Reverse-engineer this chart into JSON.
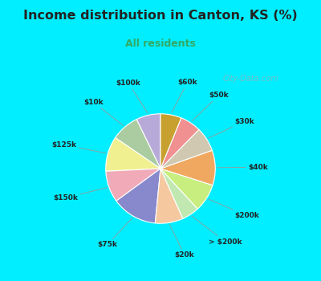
{
  "title": "Income distribution in Canton, KS (%)",
  "subtitle": "All residents",
  "title_color": "#222222",
  "subtitle_color": "#33aa66",
  "bg_top_color": "#00eeff",
  "bg_chart_color": "#e0f5ee",
  "watermark": "City-Data.com",
  "labels": [
    "$100k",
    "$10k",
    "$125k",
    "$150k",
    "$75k",
    "$20k",
    "> $200k",
    "$200k",
    "$40k",
    "$30k",
    "$50k",
    "$60k"
  ],
  "values": [
    7,
    8,
    10,
    9,
    13,
    8,
    5,
    8,
    10,
    7,
    6,
    6
  ],
  "colors": [
    "#b8aad8",
    "#aacca0",
    "#f0f090",
    "#f0aab8",
    "#8888cc",
    "#f5c8a0",
    "#c0e8b0",
    "#c8ee80",
    "#f0a860",
    "#d0c8b0",
    "#f09090",
    "#c8a030"
  ],
  "startangle": 90,
  "figsize": [
    4.0,
    3.5
  ],
  "dpi": 100
}
